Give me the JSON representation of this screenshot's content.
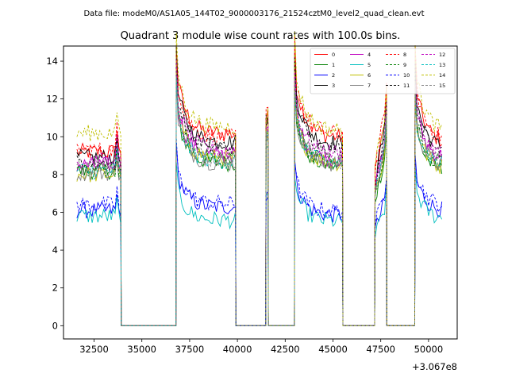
{
  "suptitle": "Data file: modeM0/AS1A05_144T02_9000003176_21524cztM0_level2_quad_clean.evt",
  "chart_data": {
    "type": "line",
    "title": "Quadrant 3 module wise count rates with 100.0s bins.",
    "xlabel": "",
    "ylabel": "",
    "offset_label": "+3.067e8",
    "xlim": [
      30900,
      51500
    ],
    "ylim": [
      -0.7,
      14.8
    ],
    "xticks": [
      32500,
      35000,
      37500,
      40000,
      42500,
      45000,
      47500,
      50000
    ],
    "xtick_labels": [
      "32500",
      "35000",
      "37500",
      "40000",
      "42500",
      "45000",
      "47500",
      "50000"
    ],
    "yticks": [
      0,
      2,
      4,
      6,
      8,
      10,
      12,
      14
    ],
    "ytick_labels": [
      "0",
      "2",
      "4",
      "6",
      "8",
      "10",
      "12",
      "14"
    ],
    "legend_location": "upper-right",
    "segments": [
      {
        "start": 31600,
        "end": 33900,
        "bins": 24,
        "peak_bin": 21
      },
      {
        "start": 36800,
        "end": 39900,
        "bins": 32,
        "peak_bin": 0
      },
      {
        "start": 41500,
        "end": 41600,
        "bins": 2,
        "peak_bin": 0
      },
      {
        "start": 43000,
        "end": 45500,
        "bins": 26,
        "peak_bin": 0
      },
      {
        "start": 47200,
        "end": 47800,
        "bins": 7,
        "peak_bin": 6
      },
      {
        "start": 49300,
        "end": 50700,
        "bins": 15,
        "peak_bin": 0
      }
    ],
    "zero_gaps": [
      [
        33900,
        36800
      ],
      [
        39900,
        41500
      ],
      [
        41600,
        43000
      ],
      [
        45500,
        47200
      ],
      [
        47800,
        49300
      ]
    ],
    "series": [
      {
        "name": "0",
        "color": "#ff0000",
        "style": "solid",
        "levels": [
          9.2,
          11.8,
          11.0,
          11.6,
          10.4,
          11.2
        ]
      },
      {
        "name": "1",
        "color": "#008000",
        "style": "solid",
        "levels": [
          8.2,
          10.0,
          9.8,
          9.8,
          8.6,
          9.4
        ]
      },
      {
        "name": "2",
        "color": "#0000ff",
        "style": "solid",
        "levels": [
          6.1,
          7.3,
          7.0,
          6.8,
          6.4,
          7.0
        ]
      },
      {
        "name": "3",
        "color": "#000000",
        "style": "solid",
        "levels": [
          8.9,
          11.3,
          10.9,
          11.2,
          10.0,
          10.8
        ]
      },
      {
        "name": "4",
        "color": "#bf00bf",
        "style": "solid",
        "levels": [
          8.5,
          10.5,
          10.2,
          10.2,
          9.3,
          10.2
        ]
      },
      {
        "name": "5",
        "color": "#00bfbf",
        "style": "solid",
        "levels": [
          5.8,
          6.5,
          6.6,
          6.4,
          6.0,
          6.5
        ]
      },
      {
        "name": "6",
        "color": "#bfbf00",
        "style": "solid",
        "levels": [
          8.0,
          10.3,
          10.0,
          10.0,
          8.8,
          9.6
        ]
      },
      {
        "name": "7",
        "color": "#808080",
        "style": "solid",
        "levels": [
          8.1,
          10.0,
          10.0,
          9.9,
          9.0,
          9.7
        ]
      },
      {
        "name": "8",
        "color": "#ff0000",
        "style": "dashed",
        "levels": [
          9.3,
          11.6,
          11.3,
          11.8,
          10.8,
          11.4
        ]
      },
      {
        "name": "9",
        "color": "#008000",
        "style": "dashed",
        "levels": [
          8.3,
          10.3,
          10.0,
          10.0,
          9.0,
          9.8
        ]
      },
      {
        "name": "10",
        "color": "#0000ff",
        "style": "dashed",
        "levels": [
          6.4,
          7.5,
          7.2,
          7.0,
          6.8,
          7.3
        ]
      },
      {
        "name": "11",
        "color": "#000000",
        "style": "dashed",
        "levels": [
          8.6,
          11.0,
          11.0,
          10.9,
          9.8,
          10.6
        ]
      },
      {
        "name": "12",
        "color": "#bf00bf",
        "style": "dashed",
        "levels": [
          8.7,
          10.8,
          10.5,
          10.6,
          9.5,
          10.4
        ]
      },
      {
        "name": "13",
        "color": "#00bfbf",
        "style": "dashed",
        "levels": [
          8.2,
          10.1,
          10.0,
          10.0,
          9.0,
          9.8
        ]
      },
      {
        "name": "14",
        "color": "#bfbf00",
        "style": "dashed",
        "levels": [
          10.2,
          12.2,
          11.2,
          12.0,
          10.8,
          11.9
        ]
      },
      {
        "name": "15",
        "color": "#808080",
        "style": "dashed",
        "levels": [
          8.3,
          10.2,
          10.0,
          10.1,
          9.1,
          9.8
        ]
      }
    ]
  }
}
